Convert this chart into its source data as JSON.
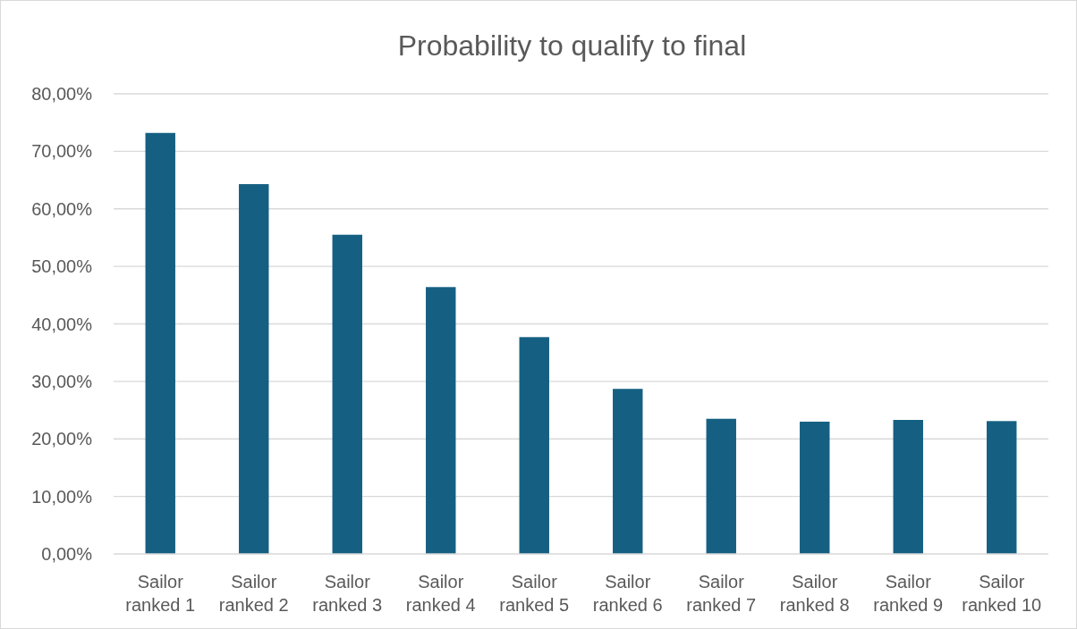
{
  "chart_data": {
    "type": "bar",
    "title": "Probability to qualify to final",
    "categories": [
      "Sailor ranked 1",
      "Sailor ranked 2",
      "Sailor ranked 3",
      "Sailor ranked 4",
      "Sailor ranked 5",
      "Sailor ranked 6",
      "Sailor ranked 7",
      "Sailor ranked 8",
      "Sailor ranked 9",
      "Sailor ranked 10"
    ],
    "values": [
      73.2,
      64.3,
      55.5,
      46.4,
      37.7,
      28.7,
      23.5,
      23.0,
      23.3,
      23.1
    ],
    "color": "#156082",
    "ylim": [
      0,
      80
    ],
    "yticks": [
      {
        "value": 0,
        "label": "0,00%"
      },
      {
        "value": 10,
        "label": "10,00%"
      },
      {
        "value": 20,
        "label": "20,00%"
      },
      {
        "value": 30,
        "label": "30,00%"
      },
      {
        "value": 40,
        "label": "40,00%"
      },
      {
        "value": 50,
        "label": "50,00%"
      },
      {
        "value": 60,
        "label": "60,00%"
      },
      {
        "value": 70,
        "label": "70,00%"
      },
      {
        "value": 80,
        "label": "80,00%"
      }
    ],
    "grid": "y"
  }
}
